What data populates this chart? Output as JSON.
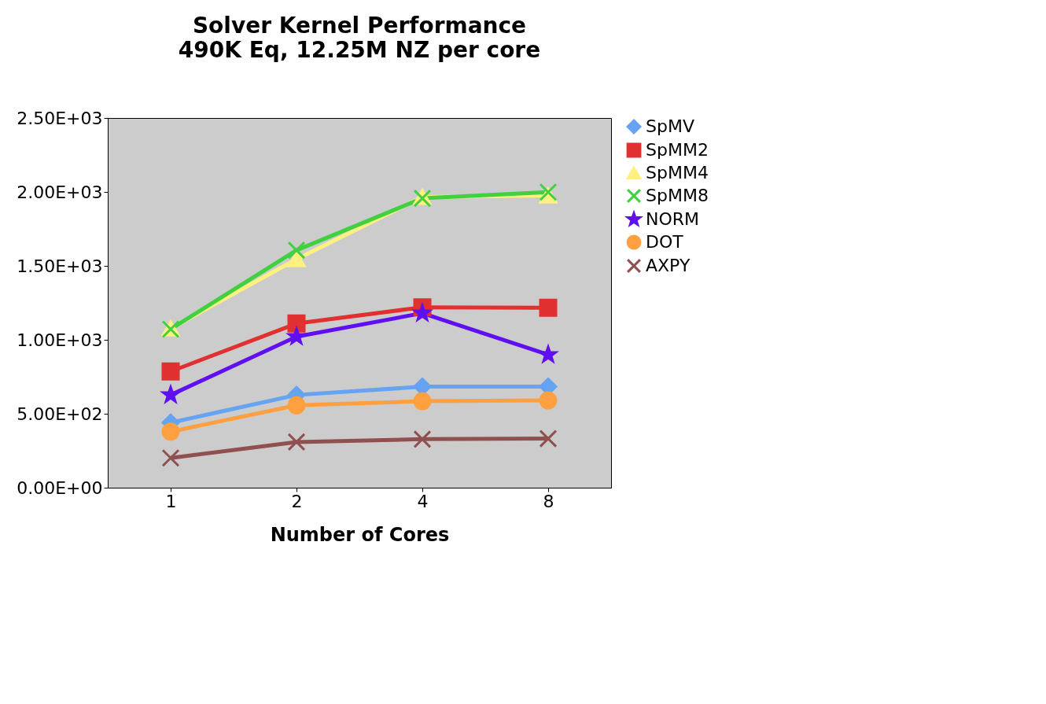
{
  "chart_data": {
    "type": "line",
    "title": "Solver Kernel Performance",
    "subtitle": "490K Eq, 12.25M NZ per core",
    "xlabel": "Number of Cores",
    "categories": [
      "1",
      "2",
      "4",
      "8"
    ],
    "ylim": [
      0,
      2500
    ],
    "yticks": [
      {
        "value": 0,
        "label": "0.00E+00"
      },
      {
        "value": 500,
        "label": "5.00E+02"
      },
      {
        "value": 1000,
        "label": "1.00E+03"
      },
      {
        "value": 1500,
        "label": "1.50E+03"
      },
      {
        "value": 2000,
        "label": "2.00E+03"
      },
      {
        "value": 2500,
        "label": "2.50E+03"
      }
    ],
    "grid": false,
    "legend": "right",
    "series": [
      {
        "name": "SpMV",
        "color": "#66a3f0",
        "marker": "diamond",
        "values": [
          440,
          627,
          683,
          683
        ]
      },
      {
        "name": "SpMM2",
        "color": "#e03030",
        "marker": "square",
        "values": [
          786,
          1110,
          1220,
          1217
        ]
      },
      {
        "name": "SpMM4",
        "color": "#fff080",
        "marker": "triangle",
        "values": [
          1077,
          1545,
          1966,
          1976
        ]
      },
      {
        "name": "SpMM8",
        "color": "#40d040",
        "marker": "cross",
        "values": [
          1072,
          1606,
          1957,
          1999
        ]
      },
      {
        "name": "NORM",
        "color": "#6010f0",
        "marker": "star",
        "values": [
          627,
          1021,
          1180,
          899
        ]
      },
      {
        "name": "DOT",
        "color": "#ffa040",
        "marker": "circle",
        "values": [
          379,
          557,
          585,
          590
        ]
      },
      {
        "name": "AXPY",
        "color": "#905050",
        "marker": "cross",
        "values": [
          201,
          309,
          328,
          332
        ]
      }
    ]
  }
}
